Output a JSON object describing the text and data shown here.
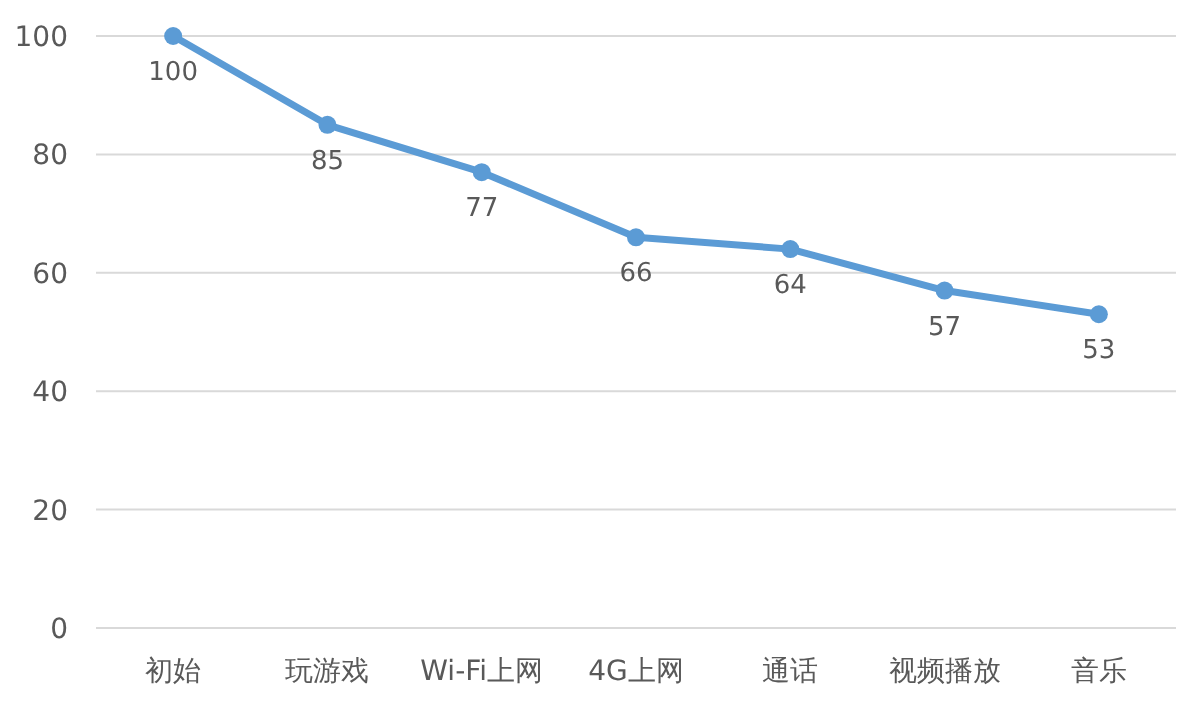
{
  "chart_data": {
    "type": "line",
    "categories": [
      "初始",
      "玩游戏",
      "Wi-Fi上网",
      "4G上网",
      "通话",
      "视频播放",
      "音乐"
    ],
    "series": [
      {
        "color": "#5b9bd5",
        "values": [
          100,
          85,
          77,
          66,
          64,
          57,
          53
        ]
      }
    ],
    "ylim": [
      0,
      100
    ],
    "yticks": [
      0,
      20,
      40,
      60,
      80,
      100
    ],
    "grid": "y",
    "marker": "circle",
    "line_style": "solid",
    "data_labels": true
  }
}
